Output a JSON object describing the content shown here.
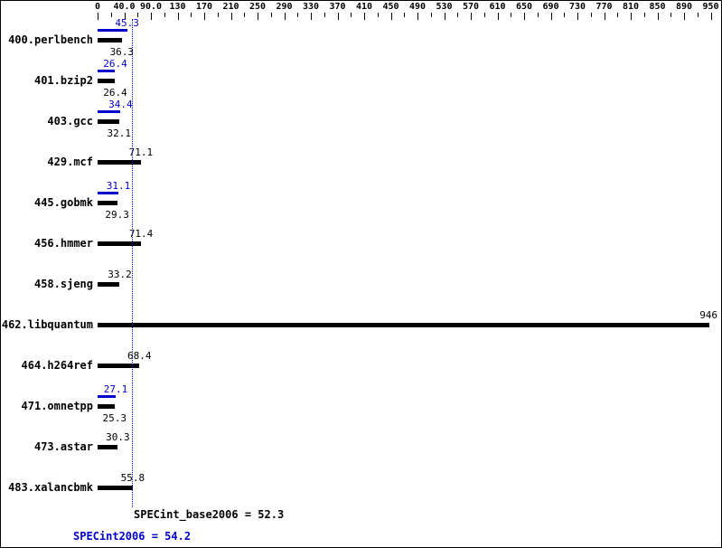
{
  "chart_data": {
    "type": "bar",
    "orientation": "horizontal",
    "title": "",
    "legend": [],
    "axis_tick_labels": [
      "0",
      "40.0",
      "90.0",
      "130",
      "170",
      "210",
      "250",
      "290",
      "330",
      "370",
      "410",
      "450",
      "490",
      "530",
      "570",
      "610",
      "650",
      "690",
      "730",
      "770",
      "810",
      "850",
      "890",
      "950"
    ],
    "axis_tick_values": [
      0,
      40,
      90,
      130,
      170,
      210,
      250,
      290,
      330,
      370,
      410,
      450,
      490,
      530,
      570,
      610,
      650,
      690,
      730,
      770,
      810,
      850,
      890,
      950
    ],
    "benchmarks": [
      {
        "name": "400.perlbench",
        "peak": 45.3,
        "peak_label": "45.3",
        "base": 36.3,
        "base_label": "36.3"
      },
      {
        "name": "401.bzip2",
        "peak": 26.4,
        "peak_label": "26.4",
        "base": 26.4,
        "base_label": "26.4"
      },
      {
        "name": "403.gcc",
        "peak": 34.4,
        "peak_label": "34.4",
        "base": 32.1,
        "base_label": "32.1"
      },
      {
        "name": "429.mcf",
        "base": 71.1,
        "base_label": "71.1"
      },
      {
        "name": "445.gobmk",
        "peak": 31.1,
        "peak_label": "31.1",
        "base": 29.3,
        "base_label": "29.3"
      },
      {
        "name": "456.hmmer",
        "base": 71.4,
        "base_label": "71.4"
      },
      {
        "name": "458.sjeng",
        "base": 33.2,
        "base_label": "33.2"
      },
      {
        "name": "462.libquantum",
        "base": 946,
        "base_label": "946"
      },
      {
        "name": "464.h264ref",
        "base": 68.4,
        "base_label": "68.4"
      },
      {
        "name": "471.omnetpp",
        "peak": 27.1,
        "peak_label": "27.1",
        "base": 25.3,
        "base_label": "25.3"
      },
      {
        "name": "473.astar",
        "base": 30.3,
        "base_label": "30.3"
      },
      {
        "name": "483.xalancbmk",
        "base": 55.8,
        "base_label": "55.8"
      }
    ],
    "specint_base": 52.3,
    "specint_peak": 54.2,
    "footer_base": "SPECint_base2006 = 52.3",
    "footer_peak": "SPECint2006 = 54.2",
    "colors": {
      "peak": "#0000cd",
      "base": "#000000",
      "background": "#ffffff"
    }
  }
}
